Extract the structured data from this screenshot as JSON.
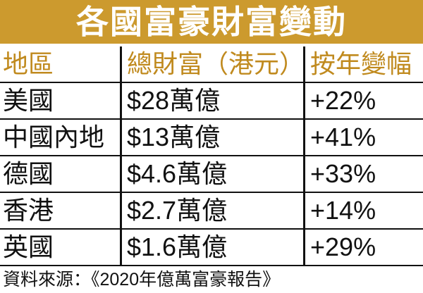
{
  "header": {
    "title": "各國富豪財富變動"
  },
  "table": {
    "columns": [
      "地區",
      "總財富（港元）",
      "按年變幅"
    ],
    "rows": [
      [
        "美國",
        "$28萬億",
        "+22%"
      ],
      [
        "中國內地",
        "$13萬億",
        "+41%"
      ],
      [
        "德國",
        "$4.6萬億",
        "+33%"
      ],
      [
        "香港",
        "$2.7萬億",
        "+14%"
      ],
      [
        "英國",
        "$1.6萬億",
        "+29%"
      ]
    ]
  },
  "footer": {
    "source": "資料來源：《2020年億萬富豪報告》"
  }
}
